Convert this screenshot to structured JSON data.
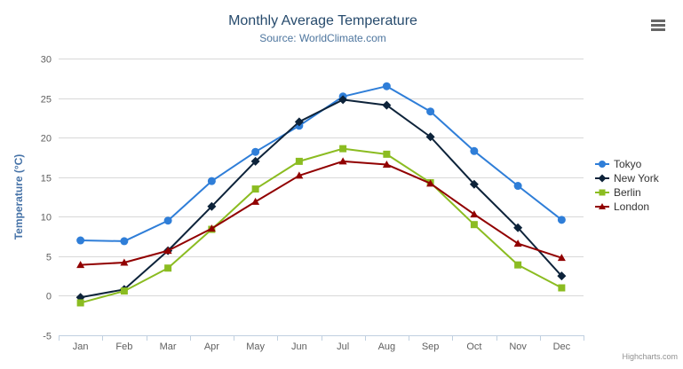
{
  "chart": {
    "title": "Monthly Average Temperature",
    "subtitle": "Source: WorldClimate.com"
  },
  "credits": "Highcharts.com",
  "chart_data": {
    "type": "line",
    "title": "Monthly Average Temperature",
    "subtitle": "Source: WorldClimate.com",
    "xlabel": "",
    "ylabel": "Temperature (°C)",
    "ylim": [
      -5,
      30
    ],
    "ytick_step": 5,
    "grid": true,
    "legend_position": "right",
    "categories": [
      "Jan",
      "Feb",
      "Mar",
      "Apr",
      "May",
      "Jun",
      "Jul",
      "Aug",
      "Sep",
      "Oct",
      "Nov",
      "Dec"
    ],
    "series": [
      {
        "name": "Tokyo",
        "color": "#2f7ed8",
        "marker": "circle",
        "values": [
          7.0,
          6.9,
          9.5,
          14.5,
          18.2,
          21.5,
          25.2,
          26.5,
          23.3,
          18.3,
          13.9,
          9.6
        ]
      },
      {
        "name": "New York",
        "color": "#0d233a",
        "marker": "diamond",
        "values": [
          -0.2,
          0.8,
          5.7,
          11.3,
          17.0,
          22.0,
          24.8,
          24.1,
          20.1,
          14.1,
          8.6,
          2.5
        ]
      },
      {
        "name": "Berlin",
        "color": "#8bbc21",
        "marker": "square",
        "values": [
          -0.9,
          0.6,
          3.5,
          8.4,
          13.5,
          17.0,
          18.6,
          17.9,
          14.3,
          9.0,
          3.9,
          1.0
        ]
      },
      {
        "name": "London",
        "color": "#910000",
        "marker": "triangle",
        "values": [
          3.9,
          4.2,
          5.7,
          8.5,
          11.9,
          15.2,
          17.0,
          16.6,
          14.2,
          10.3,
          6.6,
          4.8
        ]
      }
    ]
  },
  "theme": {
    "background": "#ffffff",
    "title_color": "#274b6d",
    "subtitle_color": "#4d759e",
    "axis_label_color": "#606060",
    "axis_title_color": "#4572a7",
    "grid_color": "#d8d8d8",
    "axis_line_color": "#c0d0e0",
    "legend_text_color": "#333333",
    "credits_color": "#909090",
    "menu_icon_color": "#666666"
  }
}
